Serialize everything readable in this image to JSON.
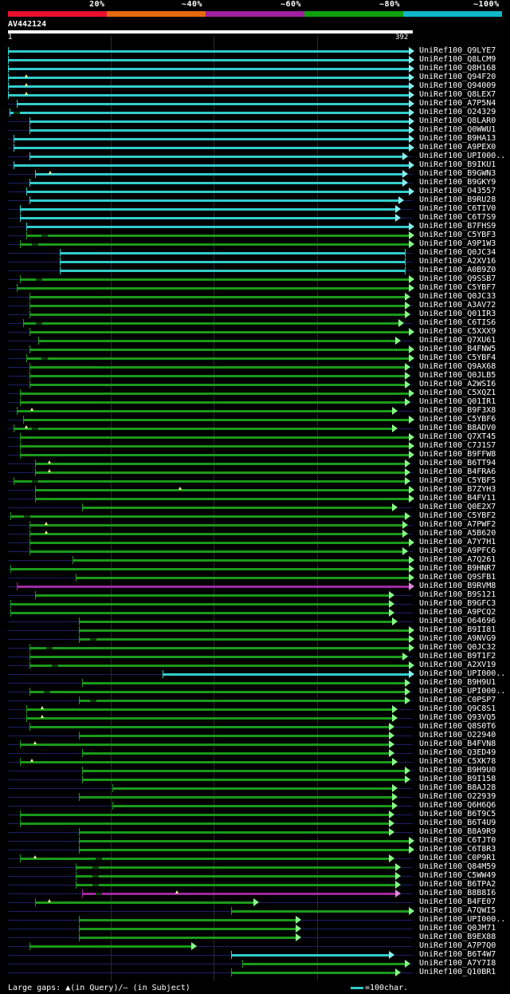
{
  "scale": {
    "labels": [
      "20%",
      "~40%",
      "~60%",
      "~80%",
      "~100%"
    ],
    "colors": [
      "#e8102c",
      "#e86a10",
      "#a020a0",
      "#10a010",
      "#10b8c8"
    ]
  },
  "query": {
    "id": "AV442124",
    "start": "1",
    "end": "392"
  },
  "hits": [
    "UniRef100_Q9LYE7",
    "UniRef100_Q8LCM9",
    "UniRef100_Q8H168",
    "UniRef100_Q94F20",
    "UniRef100_Q94009",
    "UniRef100_Q8LEX7",
    "UniRef100_A7P5N4",
    "UniRef100_O24329",
    "UniRef100_Q8LAR0",
    "UniRef100_Q0WWU1",
    "UniRef100_B9HA13",
    "UniRef100_A9PEX0",
    "UniRef100_UPI000..",
    "UniRef100_B9IKU1",
    "UniRef100_B9GWN3",
    "UniRef100_B9GKY9",
    "UniRef100_O43557",
    "UniRef100_B9RU28",
    "UniRef100_C6TIV0",
    "UniRef100_C6T7S9",
    "UniRef100_B7FHS9",
    "UniRef100_C5YBF3",
    "UniRef100_A9P1W3",
    "UniRef100_Q0JC34",
    "UniRef100_A2XV16",
    "UniRef100_A0B9Z0",
    "UniRef100_Q9SSB7",
    "UniRef100_C5YBF7",
    "UniRef100_Q0JC33",
    "UniRef100_A3AV72",
    "UniRef100_Q01IR3",
    "UniRef100_C6TIS6",
    "UniRef100_C5XXX9",
    "UniRef100_Q7XU61",
    "UniRef100_B4FNW5",
    "UniRef100_C5YBF4",
    "UniRef100_Q9AX68",
    "UniRef100_Q0JLB5",
    "UniRef100_A2WSI6",
    "UniRef100_C5XQZ1",
    "UniRef100_Q01IR1",
    "UniRef100_B9F3X8",
    "UniRef100_C5YBF6",
    "UniRef100_B8ADV0",
    "UniRef100_Q7XT45",
    "UniRef100_C7J1S7",
    "UniRef100_B9FFW8",
    "UniRef100_B6TT94",
    "UniRef100_B4FRA6",
    "UniRef100_C5YBF5",
    "UniRef100_B7ZYH3",
    "UniRef100_B4FV11",
    "UniRef100_Q0E2X7",
    "UniRef100_C5YBF2",
    "UniRef100_A7PWF2",
    "UniRef100_A5B620",
    "UniRef100_A7Y7H1",
    "UniRef100_A9PFC6",
    "UniRef100_A7Q261",
    "UniRef100_B9HNR7",
    "UniRef100_Q9SFB1",
    "UniRef100_B9RVM8",
    "UniRef100_B9S121",
    "UniRef100_B9GFC3",
    "UniRef100_A9PCQ2",
    "UniRef100_O64696",
    "UniRef100_B9II81",
    "UniRef100_A9NVG9",
    "UniRef100_Q0JC32",
    "UniRef100_B9T1F2",
    "UniRef100_A2XV19",
    "UniRef100_UPI000..",
    "UniRef100_B9H9U1",
    "UniRef100_UPI000..",
    "UniRef100_C0PSP7",
    "UniRef100_Q9C8S1",
    "UniRef100_Q93VQ5",
    "UniRef100_Q8S0T6",
    "UniRef100_O22940",
    "UniRef100_B4FVN8",
    "UniRef100_Q3ED49",
    "UniRef100_C5XK78",
    "UniRef100_B9H9U0",
    "UniRef100_B9I158",
    "UniRef100_B8AJ28",
    "UniRef100_O22939",
    "UniRef100_Q6H6Q6",
    "UniRef100_B6T9C5",
    "UniRef100_B6T4U9",
    "UniRef100_B8A9R9",
    "UniRef100_C6TJT0",
    "UniRef100_C6T8R3",
    "UniRef100_C0P9R1",
    "UniRef100_Q84M59",
    "UniRef100_C5WW49",
    "UniRef100_B6TPA2",
    "UniRef100_B8B8I6",
    "UniRef100_B4FE07",
    "UniRef100_A7QWI5",
    "UniRef100_UPI000..",
    "UniRef100_Q0JM71",
    "UniRef100_B9EX88",
    "UniRef100_A7P7Q0",
    "UniRef100_B6T4W7",
    "UniRef100_A7Y7I8",
    "UniRef100_Q10BR1"
  ],
  "footer": {
    "gaps_text": "Large gaps: ▲(in Query)/— (in Subject)",
    "legend_text": "=100char."
  }
}
